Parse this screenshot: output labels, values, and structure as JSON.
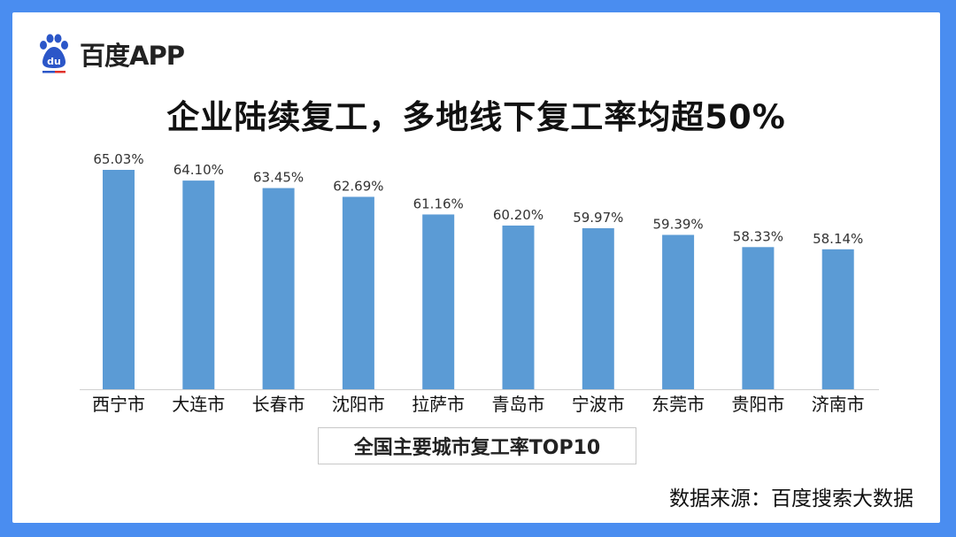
{
  "brand": {
    "name": "百度APP",
    "logo_mark": "du"
  },
  "colors": {
    "frame": "#4a8df0",
    "bar": "#5b9bd5",
    "text": "#111111",
    "axis": "#d0d0d0"
  },
  "chart_data": {
    "type": "bar",
    "title": "企业陆续复工，多地线下复工率均超50%",
    "categories": [
      "西宁市",
      "大连市",
      "长春市",
      "沈阳市",
      "拉萨市",
      "青岛市",
      "宁波市",
      "东莞市",
      "贵阳市",
      "济南市"
    ],
    "values": [
      65.03,
      64.1,
      63.45,
      62.69,
      61.16,
      60.2,
      59.97,
      59.39,
      58.33,
      58.14
    ],
    "data_labels": [
      "65.03%",
      "64.10%",
      "63.45%",
      "62.69%",
      "61.16%",
      "60.20%",
      "59.97%",
      "59.39%",
      "58.33%",
      "58.14%"
    ],
    "ylim": [
      46,
      66
    ],
    "grid": false,
    "legend": "none",
    "caption": "全国主要城市复工率TOP10"
  },
  "footer": {
    "source": "数据来源：百度搜索大数据"
  }
}
